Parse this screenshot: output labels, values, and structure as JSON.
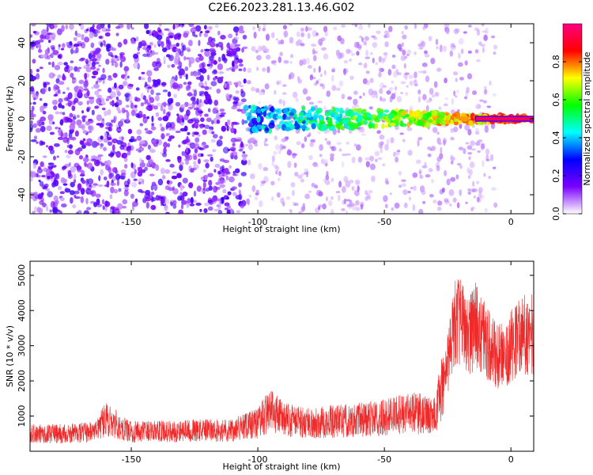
{
  "title": "C2E6.2023.281.13.46.G02",
  "chart_data": [
    {
      "type": "heatmap",
      "xlabel": "Height of straight line (km)",
      "ylabel": "Frequency (Hz)",
      "xlim": [
        -190,
        9
      ],
      "ylim": [
        -50,
        50
      ],
      "xticks": [
        -150,
        -100,
        -50,
        0
      ],
      "yticks": [
        -40,
        -20,
        0,
        20,
        40
      ],
      "colorbar": {
        "label": "Normalized spectral amplitude",
        "range": [
          0.0,
          1.0
        ],
        "ticks": [
          0.0,
          0.2,
          0.4,
          0.6,
          0.8
        ],
        "colors": [
          "#ffffff",
          "#7a00ff",
          "#0000ff",
          "#00ffff",
          "#00ff00",
          "#ffff00",
          "#ff0000",
          "#ff0080"
        ]
      },
      "signal_band": {
        "frequency_hz": 0,
        "start_km": -105,
        "end_km": 9,
        "peak_amplitude": 0.95
      },
      "noise_region": {
        "x_range_km": [
          -190,
          -105
        ],
        "frequency_range_hz": [
          -50,
          50
        ],
        "typical_amplitude": 0.2
      }
    },
    {
      "type": "line",
      "xlabel": "Height of straight line (km)",
      "ylabel": "SNR (10 * v/v)",
      "xlim": [
        -190,
        9
      ],
      "ylim": [
        0,
        5400
      ],
      "xticks": [
        -150,
        -100,
        -50,
        0
      ],
      "yticks": [
        1000,
        2000,
        3000,
        4000,
        5000
      ],
      "color": "#ee2a2a",
      "series": [
        {
          "x": [
            -190,
            -175,
            -165,
            -160,
            -150,
            -130,
            -110,
            -100,
            -95,
            -90,
            -80,
            -70,
            -60,
            -50,
            -40,
            -30,
            -28,
            -25,
            -22,
            -20,
            -18,
            -16,
            -14,
            -10,
            -6,
            -2,
            0,
            2,
            5,
            9
          ],
          "y": [
            500,
            500,
            550,
            900,
            550,
            580,
            600,
            800,
            1200,
            900,
            800,
            850,
            900,
            950,
            1100,
            1000,
            1600,
            2500,
            3600,
            3800,
            3500,
            3300,
            3600,
            3100,
            2700,
            2800,
            3000,
            3200,
            3300,
            3300
          ]
        }
      ]
    }
  ]
}
